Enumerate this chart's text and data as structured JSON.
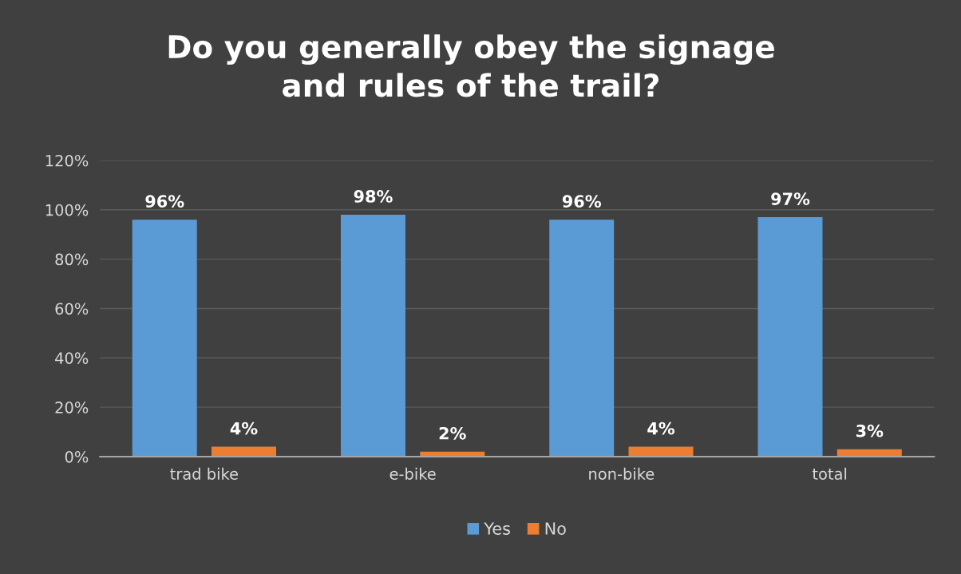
{
  "chart_data": {
    "type": "bar",
    "title": "Do you generally obey the signage\nand rules of the trail?",
    "categories": [
      "trad bike",
      "e-bike",
      "non-bike",
      "total"
    ],
    "series": [
      {
        "name": "Yes",
        "color": "#5b9bd5",
        "values": [
          96,
          98,
          96,
          97
        ],
        "value_labels": [
          "96%",
          "98%",
          "96%",
          "97%"
        ]
      },
      {
        "name": "No",
        "color": "#ed7d31",
        "values": [
          4,
          2,
          4,
          3
        ],
        "value_labels": [
          "4%",
          "2%",
          "4%",
          "3%"
        ]
      }
    ],
    "ylim": [
      0,
      120
    ],
    "yticks": [
      {
        "value": 0,
        "label": "0%"
      },
      {
        "value": 20,
        "label": "20%"
      },
      {
        "value": 40,
        "label": "40%"
      },
      {
        "value": 60,
        "label": "60%"
      },
      {
        "value": 80,
        "label": "80%"
      },
      {
        "value": 100,
        "label": "100%"
      },
      {
        "value": 120,
        "label": "120%"
      }
    ],
    "grid": "y",
    "legend": "bottom"
  }
}
